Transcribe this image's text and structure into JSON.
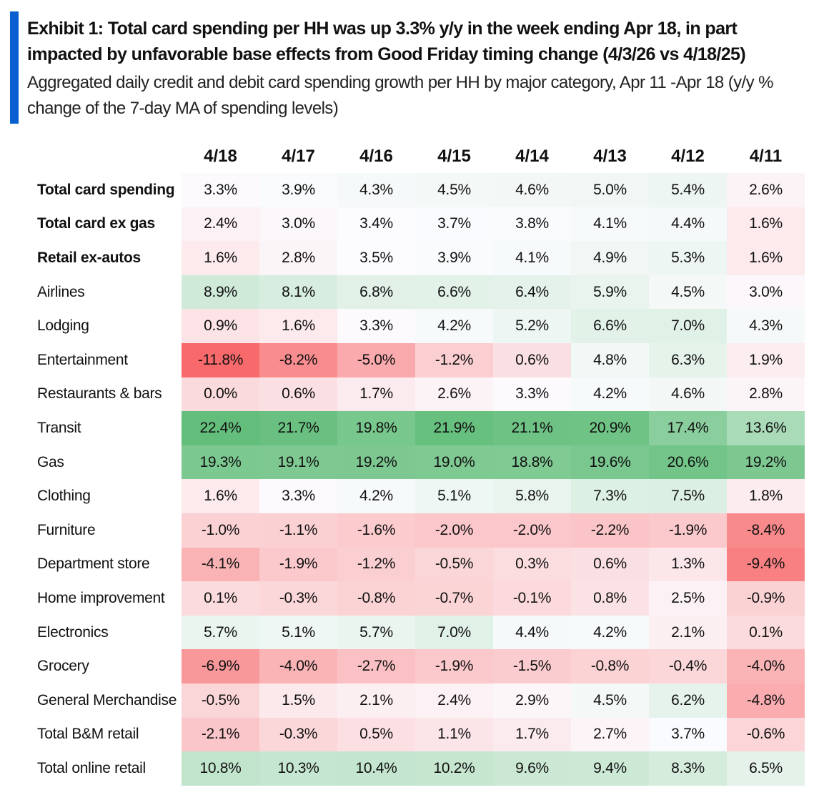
{
  "title": "Exhibit 1: Total card spending per HH was up 3.3% y/y in the week ending Apr 18, in part impacted by unfavorable base effects from Good Friday timing change (4/3/26 vs 4/18/25)",
  "subtitle": "Aggregated daily credit and debit card spending growth per HH by major category, Apr 11 -Apr 18 (y/y % change of the 7-day MA of spending levels)",
  "colors": {
    "accent": "#0a5fd0",
    "low": "#f8696b",
    "mid": "#fcfcff",
    "high": "#63be7b"
  },
  "chart_data": {
    "type": "heatmap",
    "columns": [
      "4/18",
      "4/17",
      "4/16",
      "4/15",
      "4/14",
      "4/13",
      "4/12",
      "4/11"
    ],
    "unit": "%",
    "scale": {
      "min": -11.8,
      "mid": 3.5,
      "max": 22.4
    },
    "rows": [
      {
        "label": "Total card spending",
        "bold": true,
        "values": [
          3.3,
          3.9,
          4.3,
          4.5,
          4.6,
          5.0,
          5.4,
          2.6
        ]
      },
      {
        "label": "Total card ex gas",
        "bold": true,
        "values": [
          2.4,
          3.0,
          3.4,
          3.7,
          3.8,
          4.1,
          4.4,
          1.6
        ]
      },
      {
        "label": "Retail ex-autos",
        "bold": true,
        "values": [
          1.6,
          2.8,
          3.5,
          3.9,
          4.1,
          4.9,
          5.3,
          1.6
        ]
      },
      {
        "label": "Airlines",
        "values": [
          8.9,
          8.1,
          6.8,
          6.6,
          6.4,
          5.9,
          4.5,
          3.0
        ]
      },
      {
        "label": "Lodging",
        "values": [
          0.9,
          1.6,
          3.3,
          4.2,
          5.2,
          6.6,
          7.0,
          4.3
        ]
      },
      {
        "label": "Entertainment",
        "values": [
          -11.8,
          -8.2,
          -5.0,
          -1.2,
          0.6,
          4.8,
          6.3,
          1.9
        ]
      },
      {
        "label": "Restaurants & bars",
        "values": [
          0.0,
          0.6,
          1.7,
          2.6,
          3.3,
          4.2,
          4.6,
          2.8
        ]
      },
      {
        "label": "Transit",
        "values": [
          22.4,
          21.7,
          19.8,
          21.9,
          21.1,
          20.9,
          17.4,
          13.6
        ]
      },
      {
        "label": "Gas",
        "values": [
          19.3,
          19.1,
          19.2,
          19.0,
          18.8,
          19.6,
          20.6,
          19.2
        ]
      },
      {
        "label": "Clothing",
        "values": [
          1.6,
          3.3,
          4.2,
          5.1,
          5.8,
          7.3,
          7.5,
          1.8
        ]
      },
      {
        "label": "Furniture",
        "values": [
          -1.0,
          -1.1,
          -1.6,
          -2.0,
          -2.0,
          -2.2,
          -1.9,
          -8.4
        ]
      },
      {
        "label": "Department store",
        "values": [
          -4.1,
          -1.9,
          -1.2,
          -0.5,
          0.3,
          0.6,
          1.3,
          -9.4
        ]
      },
      {
        "label": "Home improvement",
        "values": [
          0.1,
          -0.3,
          -0.8,
          -0.7,
          -0.1,
          0.8,
          2.5,
          -0.9
        ]
      },
      {
        "label": "Electronics",
        "values": [
          5.7,
          5.1,
          5.7,
          7.0,
          4.4,
          4.2,
          2.1,
          0.1
        ]
      },
      {
        "label": "Grocery",
        "values": [
          -6.9,
          -4.0,
          -2.7,
          -1.9,
          -1.5,
          -0.8,
          -0.4,
          -4.0
        ]
      },
      {
        "label": "General Merchandise",
        "values": [
          -0.5,
          1.5,
          2.1,
          2.4,
          2.9,
          4.5,
          6.2,
          -4.8
        ]
      },
      {
        "label": "Total B&M retail",
        "values": [
          -2.1,
          -0.3,
          0.5,
          1.1,
          1.7,
          2.7,
          3.7,
          -0.6
        ]
      },
      {
        "label": "Total online retail",
        "values": [
          10.8,
          10.3,
          10.4,
          10.2,
          9.6,
          9.4,
          8.3,
          6.5
        ]
      }
    ]
  }
}
